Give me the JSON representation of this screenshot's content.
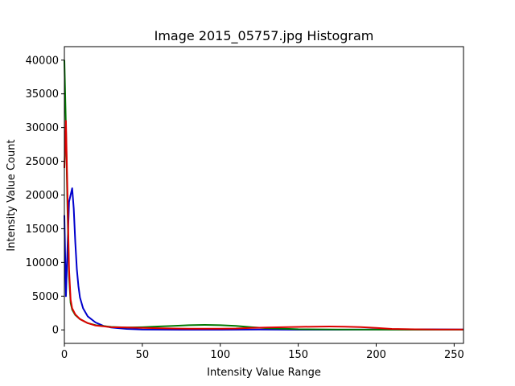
{
  "chart_data": {
    "type": "line",
    "title": "Image 2015_05757.jpg Histogram",
    "xlabel": "Intensity Value Range",
    "ylabel": "Intensity Value Count",
    "xlim": [
      0,
      256
    ],
    "ylim": [
      -2000,
      42000
    ],
    "xticks": [
      0,
      50,
      100,
      150,
      200,
      250
    ],
    "yticks": [
      0,
      5000,
      10000,
      15000,
      20000,
      25000,
      30000,
      35000,
      40000
    ],
    "grid": false,
    "series": [
      {
        "color": "#0000cc",
        "points": [
          [
            0,
            17000
          ],
          [
            1,
            5000
          ],
          [
            2,
            12000
          ],
          [
            3,
            19000
          ],
          [
            4,
            20000
          ],
          [
            5,
            21000
          ],
          [
            6,
            18000
          ],
          [
            7,
            13000
          ],
          [
            8,
            9000
          ],
          [
            9,
            6500
          ],
          [
            10,
            4800
          ],
          [
            12,
            3200
          ],
          [
            15,
            2000
          ],
          [
            20,
            1100
          ],
          [
            25,
            600
          ],
          [
            30,
            350
          ],
          [
            40,
            150
          ],
          [
            50,
            60
          ],
          [
            75,
            20
          ],
          [
            100,
            30
          ],
          [
            125,
            50
          ],
          [
            150,
            30
          ],
          [
            175,
            20
          ],
          [
            200,
            50
          ],
          [
            225,
            80
          ],
          [
            256,
            60
          ]
        ]
      },
      {
        "color": "#007700",
        "points": [
          [
            0,
            40000
          ],
          [
            1,
            30000
          ],
          [
            2,
            18000
          ],
          [
            3,
            8000
          ],
          [
            4,
            4000
          ],
          [
            5,
            3000
          ],
          [
            7,
            2200
          ],
          [
            10,
            1600
          ],
          [
            15,
            1000
          ],
          [
            20,
            700
          ],
          [
            30,
            450
          ],
          [
            40,
            350
          ],
          [
            50,
            400
          ],
          [
            60,
            500
          ],
          [
            70,
            600
          ],
          [
            80,
            700
          ],
          [
            90,
            750
          ],
          [
            100,
            700
          ],
          [
            110,
            600
          ],
          [
            120,
            400
          ],
          [
            130,
            250
          ],
          [
            150,
            100
          ],
          [
            175,
            50
          ],
          [
            200,
            40
          ],
          [
            225,
            20
          ],
          [
            256,
            30
          ]
        ]
      },
      {
        "color": "#dd0000",
        "points": [
          [
            0,
            24000
          ],
          [
            1,
            31000
          ],
          [
            2,
            20000
          ],
          [
            3,
            9000
          ],
          [
            4,
            4500
          ],
          [
            5,
            3200
          ],
          [
            7,
            2300
          ],
          [
            10,
            1600
          ],
          [
            15,
            1000
          ],
          [
            20,
            650
          ],
          [
            30,
            400
          ],
          [
            40,
            350
          ],
          [
            50,
            300
          ],
          [
            60,
            250
          ],
          [
            70,
            200
          ],
          [
            80,
            180
          ],
          [
            90,
            170
          ],
          [
            100,
            180
          ],
          [
            110,
            200
          ],
          [
            120,
            300
          ],
          [
            130,
            350
          ],
          [
            140,
            400
          ],
          [
            150,
            450
          ],
          [
            160,
            480
          ],
          [
            170,
            500
          ],
          [
            180,
            480
          ],
          [
            190,
            420
          ],
          [
            200,
            300
          ],
          [
            210,
            150
          ],
          [
            225,
            80
          ],
          [
            240,
            60
          ],
          [
            256,
            50
          ]
        ]
      }
    ]
  }
}
